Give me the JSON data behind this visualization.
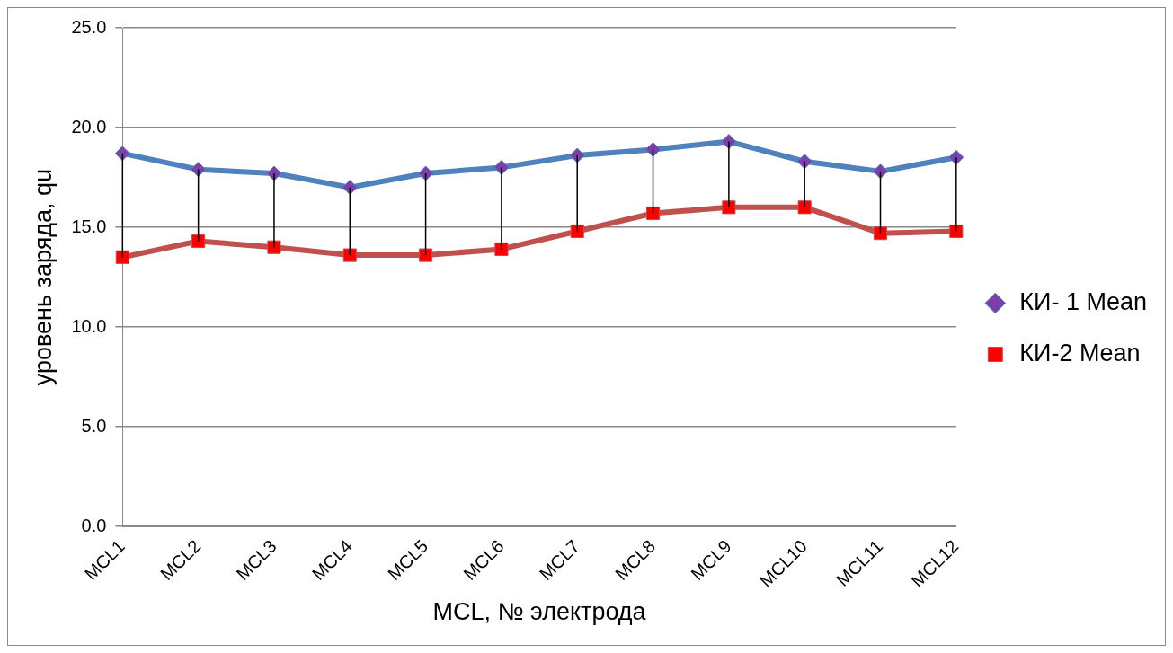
{
  "chart_data": {
    "type": "line",
    "xlabel": "MCL, № электрода",
    "ylabel": "уровень заряда, qu",
    "categories": [
      "MCL1",
      "MCL2",
      "MCL3",
      "MCL4",
      "MCL5",
      "MCL6",
      "MCL7",
      "MCL8",
      "MCL9",
      "MCL10",
      "MCL11",
      "MCL12"
    ],
    "series": [
      {
        "name": "КИ- 1 Mean",
        "color": "#4f81bd",
        "marker": "diamond",
        "values": [
          18.7,
          17.9,
          17.7,
          17.0,
          17.7,
          18.0,
          18.6,
          18.9,
          19.3,
          18.3,
          17.8,
          18.5
        ]
      },
      {
        "name": "КИ-2 Mean",
        "color": "#c0504d",
        "marker": "square",
        "values": [
          13.5,
          14.3,
          14.0,
          13.6,
          13.6,
          13.9,
          14.8,
          15.7,
          16.0,
          16.0,
          14.7,
          14.8
        ],
        "errors": [
          [
            13.5,
            18.7
          ],
          [
            14.3,
            17.9
          ],
          [
            14.0,
            17.7
          ],
          [
            13.6,
            17.0
          ],
          [
            13.6,
            17.7
          ],
          [
            13.9,
            18.0
          ],
          [
            14.8,
            18.6
          ],
          [
            15.7,
            18.9
          ],
          [
            16.0,
            19.3
          ],
          [
            16.0,
            18.3
          ],
          [
            14.7,
            17.8
          ],
          [
            14.8,
            18.5
          ]
        ]
      }
    ],
    "ylim": [
      0,
      25
    ],
    "yticks": [
      {
        "value": 0,
        "label": "0.0"
      },
      {
        "value": 5,
        "label": "5.0"
      },
      {
        "value": 10,
        "label": "10.0"
      },
      {
        "value": 15,
        "label": "15.0"
      },
      {
        "value": 20,
        "label": "20.0"
      },
      {
        "value": 25,
        "label": "25.0"
      }
    ],
    "grid": "y",
    "legend": "right",
    "line_style": "solid"
  }
}
